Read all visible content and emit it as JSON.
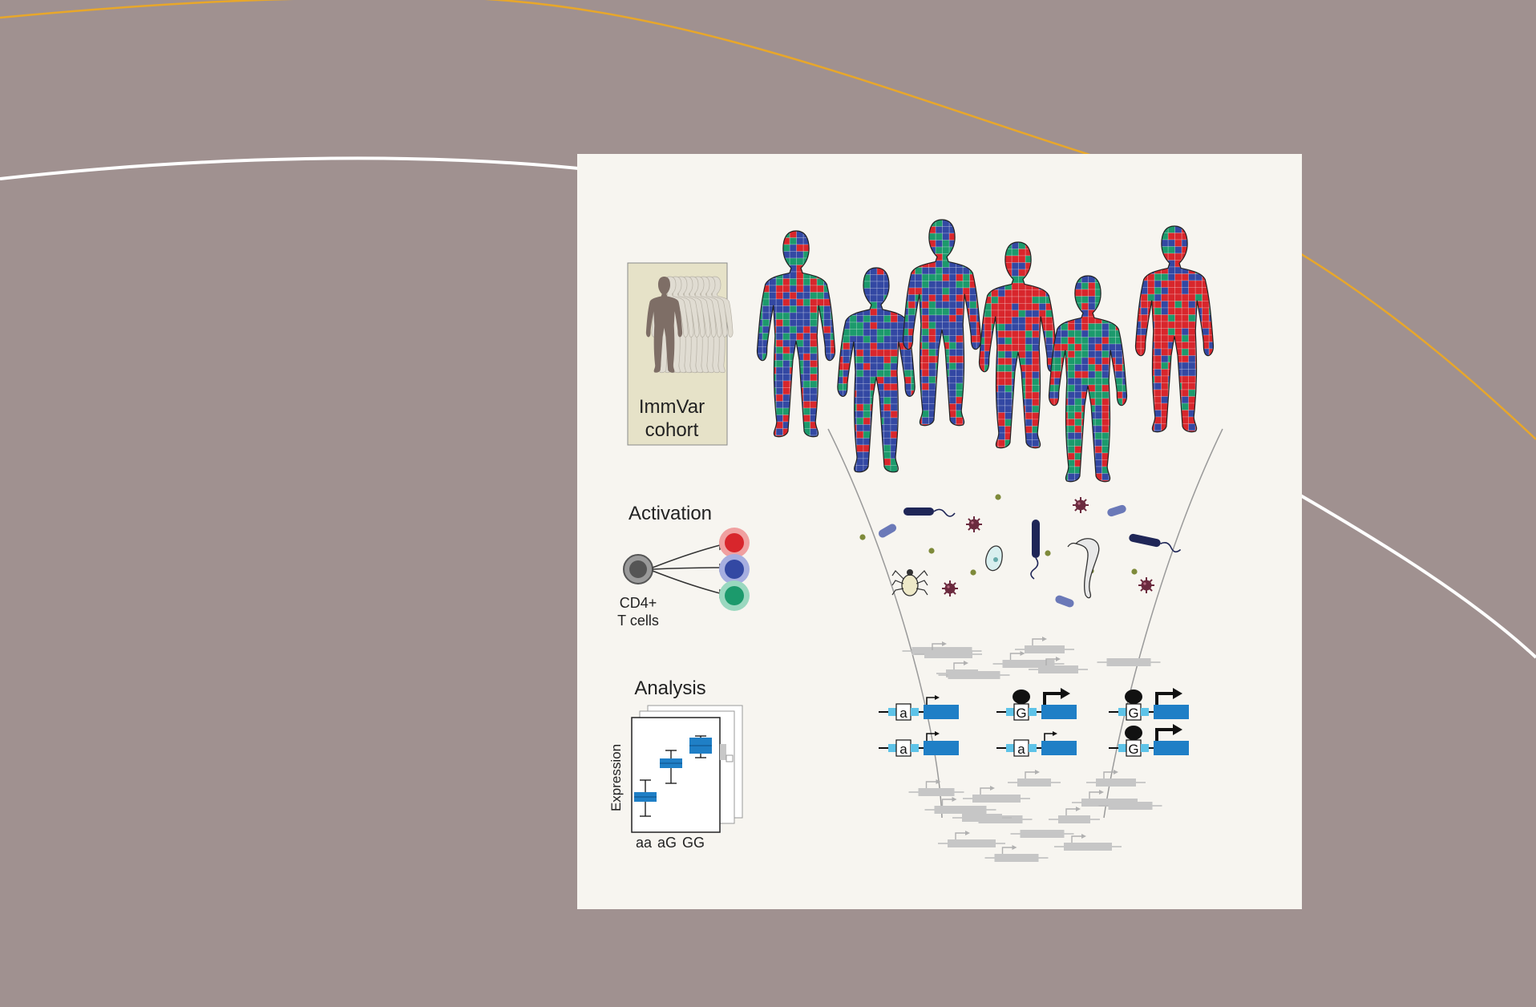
{
  "colors": {
    "background": "#a09190",
    "panel": "#f7f5f0",
    "orange_curve": "#e8a72a",
    "white_curve": "#ffffff",
    "genome_red": "#d8262c",
    "genome_blue": "#3348a3",
    "genome_green": "#1c9a6c",
    "gene_blue": "#1f7fc6"
  },
  "cohort": {
    "line1": "ImmVar",
    "line2": "cohort"
  },
  "activation": {
    "title": "Activation",
    "cell_label_1": "CD4+",
    "cell_label_2": "T cells"
  },
  "analysis": {
    "title": "Analysis",
    "ylabel": "Expression",
    "genotypes": [
      "aa",
      "aG",
      "GG"
    ]
  },
  "alleles": {
    "row1": [
      "a",
      "G",
      "G"
    ],
    "row2": [
      "a",
      "a",
      "G"
    ]
  },
  "icons": [
    "human-silhouette-icon",
    "t-cell-icon",
    "bacterium-icon",
    "virus-icon",
    "mite-icon",
    "parasite-icon",
    "protozoan-icon",
    "promoter-arrow-icon",
    "transcription-factor-icon"
  ]
}
